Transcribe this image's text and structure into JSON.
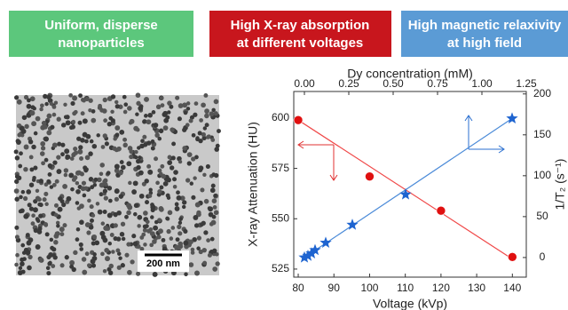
{
  "headers": [
    {
      "lines": [
        "Uniform, disperse",
        "nanoparticles"
      ]
    },
    {
      "lines": [
        "High X-ray absorption",
        "at different voltages"
      ]
    },
    {
      "lines": [
        "High magnetic relaxivity",
        "at high field"
      ]
    }
  ],
  "image": {
    "scale_label": "200 nm"
  },
  "chart_data": {
    "type": "scatter",
    "x_label": "Voltage (kVp)",
    "x2_label": "Dy concentration (mM)",
    "y_label": "X-ray Attenuation (HU)",
    "y2_label": "1/T₂ (s⁻¹)",
    "xlim": [
      78.75,
      143.9
    ],
    "xticks": [
      80,
      90,
      100,
      110,
      120,
      130,
      140
    ],
    "x2lim": [
      -0.06,
      1.25
    ],
    "x2ticks": [
      {
        "value": 0,
        "label": "0.00"
      },
      {
        "value": 0.25,
        "label": "0.25"
      },
      {
        "value": 0.5,
        "label": "0.50"
      },
      {
        "value": 0.75,
        "label": "0.75"
      },
      {
        "value": 1,
        "label": "1.00"
      },
      {
        "value": 1.25,
        "label": "1.25"
      }
    ],
    "ylim": [
      521,
      613.2
    ],
    "yticks": [
      525,
      550,
      575,
      600
    ],
    "y2lim": [
      -24,
      203
    ],
    "y2ticks": [
      0,
      50,
      100,
      150,
      200
    ],
    "series": [
      {
        "marker": "line",
        "color": "#f04848",
        "x": [
          80,
          140
        ],
        "values": [
          599,
          530
        ]
      },
      {
        "marker": "line",
        "color": "#4a8ad8",
        "axis": "y2",
        "x": [
          0,
          1.17
        ],
        "values": [
          0,
          170
        ]
      },
      {
        "marker": "circle",
        "color": "#e01010",
        "x": [
          80,
          100,
          120,
          140
        ],
        "values": [
          599,
          571,
          554,
          531
        ]
      },
      {
        "marker": "star",
        "color": "#1e64d0",
        "axis": "y2",
        "x": [
          0,
          0.02,
          0.04,
          0.06,
          0.12,
          0.27,
          0.57,
          1.17
        ],
        "values": [
          0,
          2,
          5,
          9,
          18,
          40,
          77,
          170
        ]
      }
    ]
  }
}
